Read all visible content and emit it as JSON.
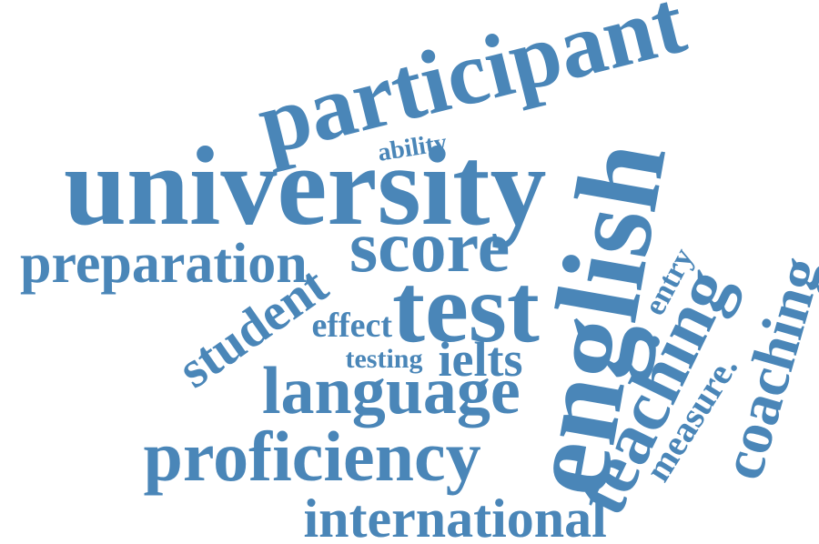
{
  "theme": {
    "word_color": "#4a86b8",
    "background": "#ffffff"
  },
  "words": {
    "participant": "participant",
    "university": "university",
    "ability": "ability",
    "english": "english",
    "preparation": "preparation",
    "score": "score",
    "test": "test",
    "student": "student",
    "effect": "effect",
    "entry": "entry",
    "testing": "testing",
    "ielts": "ielts",
    "language": "language",
    "teaching": "teaching",
    "measure": "measure.",
    "coaching": "coaching",
    "proficiency": "proficiency",
    "international": "international"
  }
}
